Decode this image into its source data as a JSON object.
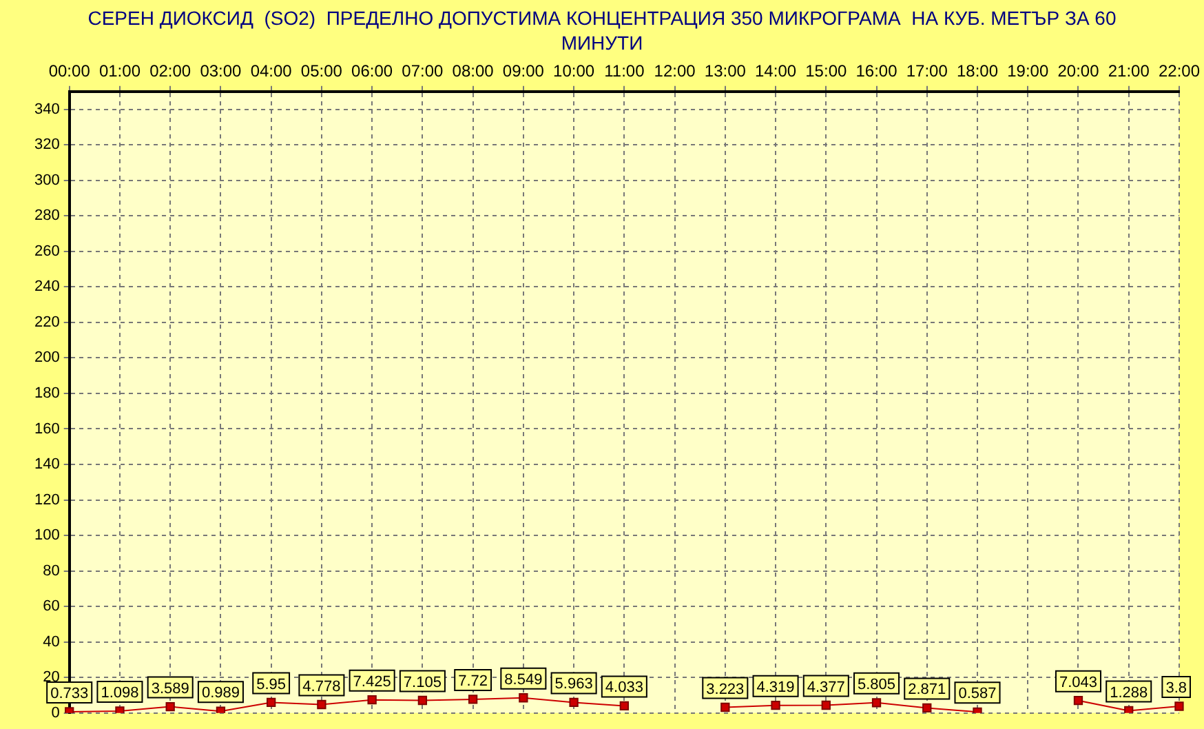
{
  "chart_data": {
    "type": "line",
    "title": "СЕРЕН ДИОКСИД  (SO2)  ПРЕДЕЛНО ДОПУСТИМА КОНЦЕНТРАЦИЯ 350 МИКРОГРАМА  НА КУБ. МЕТЪР ЗА 60 МИНУТИ",
    "categories": [
      "00:00",
      "01:00",
      "02:00",
      "03:00",
      "04:00",
      "05:00",
      "06:00",
      "07:00",
      "08:00",
      "09:00",
      "10:00",
      "11:00",
      "12:00",
      "13:00",
      "14:00",
      "15:00",
      "16:00",
      "17:00",
      "18:00",
      "19:00",
      "20:00",
      "21:00",
      "22:00"
    ],
    "series": [
      {
        "color": "#cc0000",
        "values": [
          0.733,
          1.098,
          3.589,
          0.989,
          5.95,
          4.778,
          7.425,
          7.105,
          7.72,
          8.549,
          5.963,
          4.033,
          null,
          3.223,
          4.319,
          4.377,
          5.805,
          2.871,
          0.587,
          null,
          7.043,
          1.288,
          3.8
        ]
      }
    ],
    "ylim": [
      0,
      350
    ],
    "yticks": [
      0,
      20,
      40,
      60,
      80,
      100,
      120,
      140,
      160,
      180,
      200,
      220,
      240,
      260,
      280,
      300,
      320,
      340
    ],
    "grid": true,
    "legend": false,
    "marker": "square",
    "line_style": "solid",
    "data_labels": true
  }
}
